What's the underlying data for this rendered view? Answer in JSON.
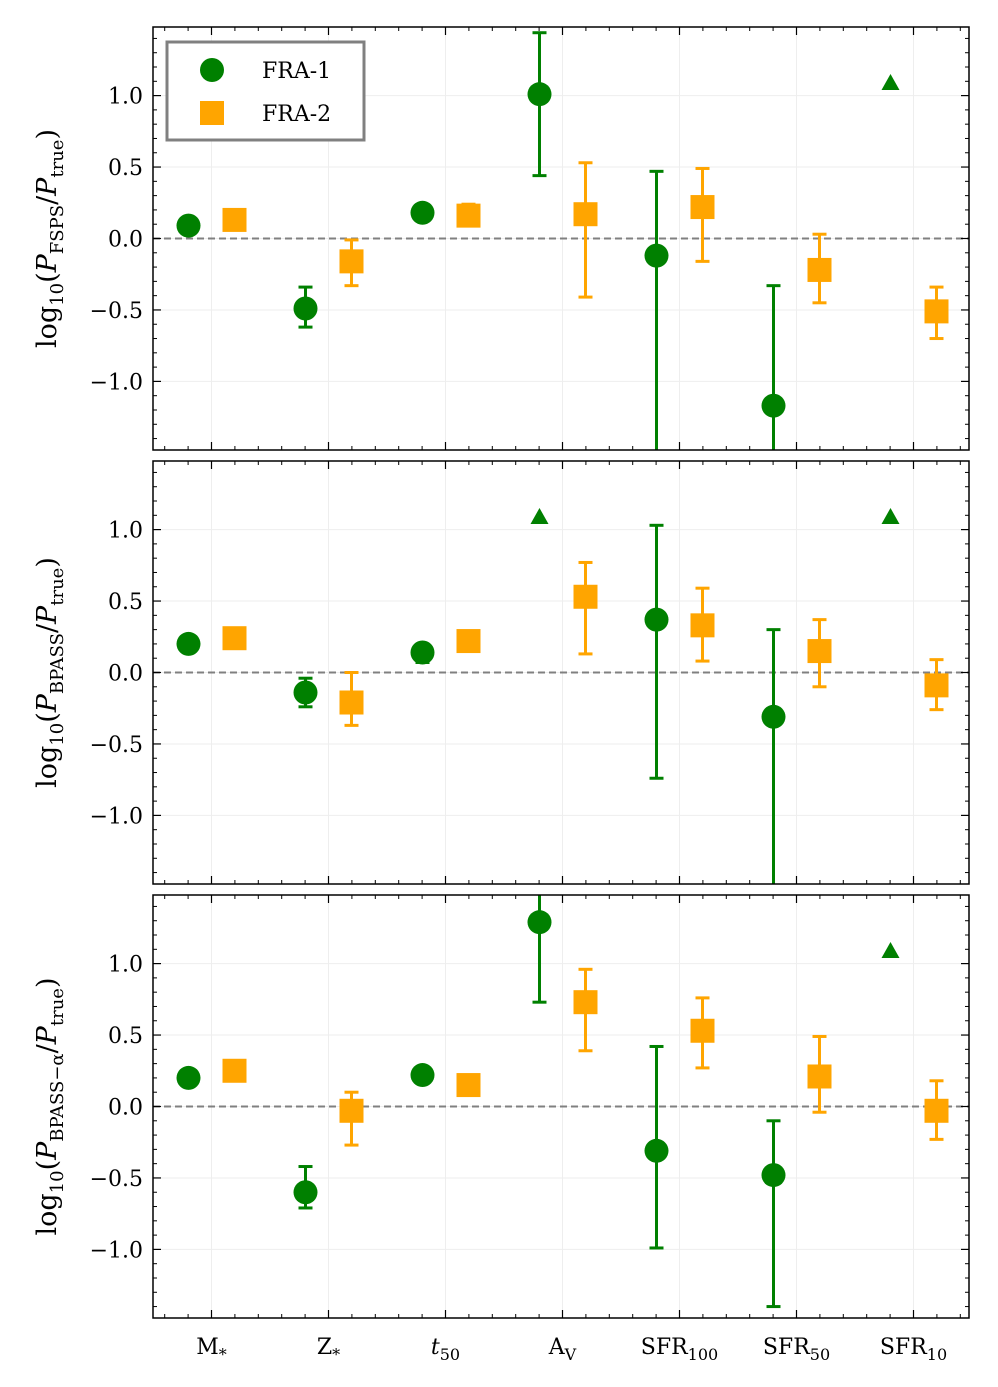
{
  "chart_data": {
    "type": "scatter",
    "categories": [
      "M*",
      "Z*",
      "t50",
      "AV",
      "SFR100",
      "SFR50",
      "SFR10"
    ],
    "tick_labels": [
      {
        "main": "M",
        "sub": "*",
        "italic": false
      },
      {
        "main": "Z",
        "sub": "*",
        "italic": false
      },
      {
        "main": "t",
        "sub": "50",
        "italic": true
      },
      {
        "main": "A",
        "sub": "V",
        "italic": false
      },
      {
        "main": "SFR",
        "sub": "100",
        "italic": false
      },
      {
        "main": "SFR",
        "sub": "50",
        "italic": false
      },
      {
        "main": "SFR",
        "sub": "10",
        "italic": false
      }
    ],
    "ylim": [
      -1.48,
      1.48
    ],
    "yticks": [
      1.0,
      0.5,
      0.0,
      -0.5,
      -1.0
    ],
    "ytick_labels": [
      "1.0",
      "0.5",
      "0.0",
      "−0.5",
      "−1.0"
    ],
    "reference_line": 0.0,
    "grid": true,
    "legend": {
      "placement": "top-left",
      "entries": [
        {
          "label": "FRA-1",
          "color": "#008000",
          "marker": "circle"
        },
        {
          "label": "FRA-2",
          "color": "#FFA500",
          "marker": "square"
        }
      ]
    },
    "panels": [
      {
        "ylabel": {
          "prefix": "log",
          "prefix_sub": "10",
          "main_sub": "FSPS"
        },
        "series": [
          {
            "name": "FRA-1",
            "values": [
              0.09,
              -0.49,
              0.18,
              1.01,
              -0.12,
              -1.17,
              null
            ],
            "err_low": [
              null,
              -0.62,
              null,
              0.44,
              -1.48,
              -1.48,
              null
            ],
            "err_high": [
              null,
              -0.34,
              null,
              1.44,
              0.47,
              -0.33,
              null
            ],
            "lower_limits": [
              6
            ]
          },
          {
            "name": "FRA-2",
            "values": [
              0.13,
              -0.16,
              0.16,
              0.17,
              0.22,
              -0.22,
              -0.51
            ],
            "err_low": [
              null,
              -0.33,
              0.13,
              -0.41,
              -0.16,
              -0.45,
              -0.7
            ],
            "err_high": [
              null,
              -0.01,
              0.24,
              0.53,
              0.49,
              0.03,
              -0.34
            ],
            "lower_limits": []
          }
        ]
      },
      {
        "ylabel": {
          "prefix": "log",
          "prefix_sub": "10",
          "main_sub": "BPASS"
        },
        "series": [
          {
            "name": "FRA-1",
            "values": [
              0.2,
              -0.14,
              0.14,
              null,
              0.37,
              -0.31,
              null
            ],
            "err_low": [
              0.17,
              -0.24,
              0.07,
              null,
              -0.74,
              -1.48,
              null
            ],
            "err_high": [
              0.23,
              -0.04,
              0.16,
              null,
              1.03,
              0.3,
              null
            ],
            "lower_limits": [
              3,
              6
            ]
          },
          {
            "name": "FRA-2",
            "values": [
              0.24,
              -0.21,
              0.22,
              0.53,
              0.33,
              0.15,
              -0.09
            ],
            "err_low": [
              null,
              -0.37,
              null,
              0.13,
              0.08,
              -0.1,
              -0.26
            ],
            "err_high": [
              null,
              0.0,
              null,
              0.77,
              0.59,
              0.37,
              0.09
            ],
            "lower_limits": []
          }
        ]
      },
      {
        "ylabel": {
          "prefix": "log",
          "prefix_sub": "10",
          "main_sub": "BPASS−α"
        },
        "series": [
          {
            "name": "FRA-1",
            "values": [
              0.2,
              -0.6,
              0.22,
              1.29,
              -0.31,
              -0.48,
              null
            ],
            "err_low": [
              null,
              -0.71,
              null,
              0.73,
              -0.99,
              -1.4,
              null
            ],
            "err_high": [
              null,
              -0.42,
              null,
              1.48,
              0.42,
              -0.1,
              null
            ],
            "lower_limits": [
              6
            ]
          },
          {
            "name": "FRA-2",
            "values": [
              0.25,
              -0.03,
              0.15,
              0.73,
              0.53,
              0.21,
              -0.03
            ],
            "err_low": [
              null,
              -0.27,
              null,
              0.39,
              0.27,
              -0.04,
              -0.23
            ],
            "err_high": [
              null,
              0.1,
              null,
              0.96,
              0.76,
              0.49,
              0.18
            ],
            "lower_limits": []
          }
        ]
      }
    ]
  }
}
